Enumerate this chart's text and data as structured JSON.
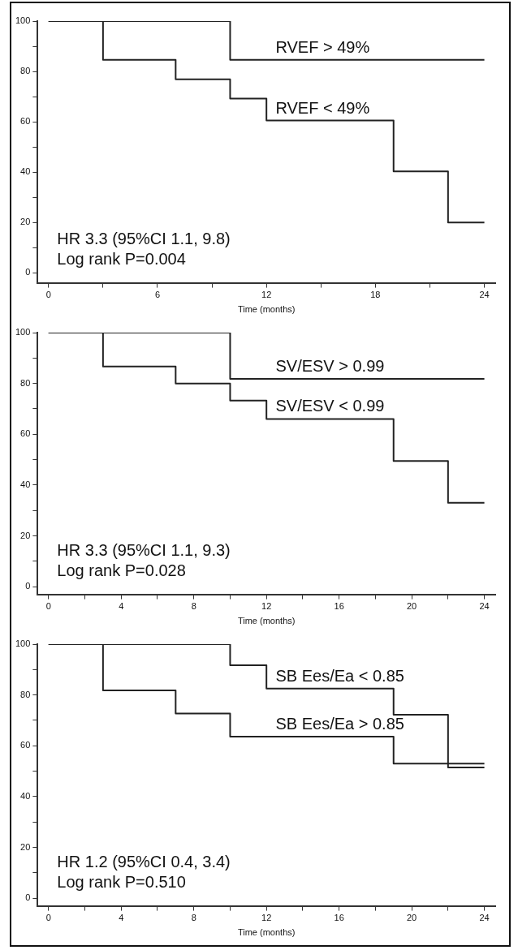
{
  "chart_data": [
    {
      "type": "step",
      "xlabel": "Time (months)",
      "xlim": [
        -0.6,
        24.6
      ],
      "ylim": [
        -4,
        100
      ],
      "xticks": [
        0,
        {
          "value": 3,
          "label": null
        },
        6,
        {
          "value": 9,
          "label": null
        },
        12,
        {
          "value": 15,
          "label": null
        },
        18,
        {
          "value": 21,
          "label": null
        },
        24
      ],
      "yticks": [
        0,
        {
          "value": 10,
          "label": null
        },
        20,
        {
          "value": 30,
          "label": null
        },
        40,
        {
          "value": 50,
          "label": null
        },
        60,
        {
          "value": 70,
          "label": null
        },
        80,
        {
          "value": 90,
          "label": null
        },
        100
      ],
      "grid": false,
      "legend": false,
      "marker": "none",
      "line_style": "solid",
      "series": [
        {
          "name": "RVEF > 49%",
          "color": "#222222",
          "x": [
            0,
            10,
            24
          ],
          "values": [
            100,
            84.6,
            84.6
          ]
        },
        {
          "name": "RVEF < 49%",
          "color": "#222222",
          "x": [
            0,
            3,
            7,
            10,
            12,
            19,
            22,
            24
          ],
          "values": [
            100,
            84.6,
            76.9,
            69.2,
            60.5,
            40.3,
            20,
            20
          ]
        }
      ],
      "annotations": [
        "HR 3.3 (95%CI 1.1, 9.8)",
        "Log rank P=0.004"
      ]
    },
    {
      "type": "step",
      "xlabel": "Time (months)",
      "xlim": [
        -0.6,
        24.6
      ],
      "ylim": [
        -3,
        100
      ],
      "xticks": [
        0,
        {
          "value": 2,
          "label": null
        },
        4,
        {
          "value": 6,
          "label": null
        },
        8,
        {
          "value": 10,
          "label": null
        },
        12,
        {
          "value": 14,
          "label": null
        },
        16,
        {
          "value": 18,
          "label": null
        },
        20,
        {
          "value": 22,
          "label": null
        },
        24
      ],
      "yticks": [
        0,
        {
          "value": 10,
          "label": null
        },
        20,
        {
          "value": 30,
          "label": null
        },
        40,
        {
          "value": 50,
          "label": null
        },
        60,
        {
          "value": 70,
          "label": null
        },
        80,
        {
          "value": 90,
          "label": null
        },
        100
      ],
      "grid": false,
      "legend": false,
      "marker": "none",
      "line_style": "solid",
      "series": [
        {
          "name": "SV/ESV > 0.99",
          "color": "#222222",
          "x": [
            0,
            10,
            24
          ],
          "values": [
            100,
            81.8,
            81.8
          ]
        },
        {
          "name": "SV/ESV < 0.99",
          "color": "#222222",
          "x": [
            0,
            3,
            7,
            10,
            12,
            19,
            22,
            24
          ],
          "values": [
            100,
            86.7,
            80,
            73.3,
            66,
            49.5,
            33,
            33
          ]
        }
      ],
      "annotations": [
        "HR 3.3 (95%CI 1.1, 9.3)",
        "Log rank P=0.028"
      ]
    },
    {
      "type": "step",
      "xlabel": "Time (months)",
      "xlim": [
        -0.6,
        24.6
      ],
      "ylim": [
        -3,
        100
      ],
      "xticks": [
        0,
        {
          "value": 2,
          "label": null
        },
        4,
        {
          "value": 6,
          "label": null
        },
        8,
        {
          "value": 10,
          "label": null
        },
        12,
        {
          "value": 14,
          "label": null
        },
        16,
        {
          "value": 18,
          "label": null
        },
        20,
        {
          "value": 22,
          "label": null
        },
        24
      ],
      "yticks": [
        0,
        {
          "value": 10,
          "label": null
        },
        20,
        {
          "value": 30,
          "label": null
        },
        40,
        {
          "value": 50,
          "label": null
        },
        60,
        {
          "value": 70,
          "label": null
        },
        80,
        {
          "value": 90,
          "label": null
        },
        100
      ],
      "grid": false,
      "legend": false,
      "marker": "none",
      "line_style": "solid",
      "series": [
        {
          "name": "SB Ees/Ea < 0.85",
          "color": "#222222",
          "x": [
            0,
            10,
            12,
            19,
            22,
            24
          ],
          "values": [
            100,
            91.7,
            82.5,
            72.2,
            51.5,
            51.5
          ]
        },
        {
          "name": "SB Ees/Ea > 0.85",
          "color": "#222222",
          "x": [
            0,
            3,
            7,
            10,
            19,
            24
          ],
          "values": [
            100,
            81.8,
            72.7,
            63.6,
            53,
            53
          ]
        }
      ],
      "annotations": [
        "HR 1.2 (95%CI 0.4, 3.4)",
        "Log rank P=0.510"
      ]
    }
  ]
}
